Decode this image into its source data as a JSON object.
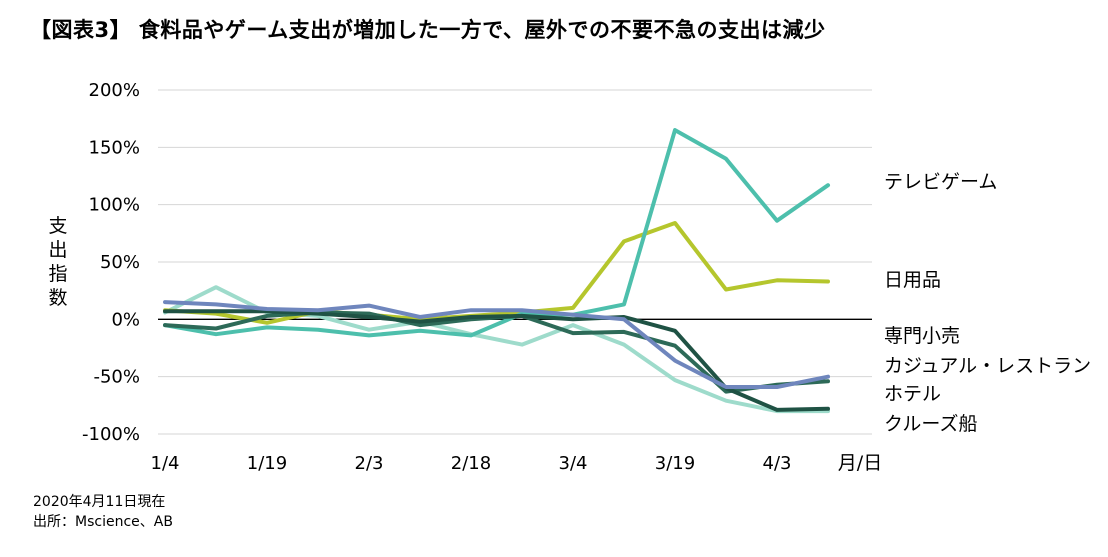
{
  "chart_data": {
    "type": "line",
    "title": "【図表3】 食料品やゲーム支出が増加した一方で、屋外での不要不急の支出は減少",
    "ylabel": "支出指数",
    "xlabel": "月/日",
    "x": [
      "1/4",
      "1/11",
      "1/19",
      "1/26",
      "2/3",
      "2/10",
      "2/18",
      "2/25",
      "3/4",
      "3/11",
      "3/19",
      "3/26",
      "4/3",
      "4/10"
    ],
    "x_tick_labels": [
      "1/4",
      "1/19",
      "2/3",
      "2/18",
      "3/4",
      "3/19",
      "4/3"
    ],
    "y_tick_labels": [
      "200%",
      "150%",
      "100%",
      "50%",
      "0%",
      "-50%",
      "-100%"
    ],
    "ylim": [
      -100,
      200
    ],
    "y_ticks": [
      -100,
      -50,
      0,
      50,
      100,
      150,
      200
    ],
    "grid": "horizontal",
    "zero_line": true,
    "series": [
      {
        "name": "テレビゲーム",
        "color": "#4dbfac",
        "values": [
          -5,
          -13,
          -7,
          -9,
          -14,
          -10,
          -14,
          5,
          4,
          13,
          165,
          140,
          86,
          117
        ]
      },
      {
        "name": "日用品",
        "color": "#b5c62d",
        "values": [
          8,
          5,
          -3,
          7,
          4,
          0,
          3,
          6,
          10,
          68,
          84,
          26,
          34,
          33
        ]
      },
      {
        "name": "専門小売",
        "color": "#6f86bd",
        "values": [
          15,
          13,
          9,
          8,
          12,
          2,
          8,
          8,
          4,
          0,
          -36,
          -59,
          -59,
          -50
        ]
      },
      {
        "name": "カジュアル・レストラン",
        "color": "#2d6a58",
        "values": [
          -5,
          -8,
          3,
          6,
          5,
          -5,
          0,
          3,
          -12,
          -11,
          -23,
          -63,
          -57,
          -54
        ]
      },
      {
        "name": "ホテル",
        "color": "#1f5244",
        "values": [
          7,
          7,
          7,
          5,
          2,
          -2,
          2,
          3,
          0,
          2,
          -10,
          -60,
          -79,
          -78
        ]
      },
      {
        "name": "クルーズ船",
        "color": "#9edbcb",
        "values": [
          6,
          28,
          6,
          3,
          -9,
          -2,
          -13,
          -22,
          -5,
          -22,
          -53,
          -71,
          -80,
          -80
        ]
      }
    ]
  },
  "footnote": {
    "date": "2020年4月11日現在",
    "source": "出所：Mscience、AB"
  }
}
